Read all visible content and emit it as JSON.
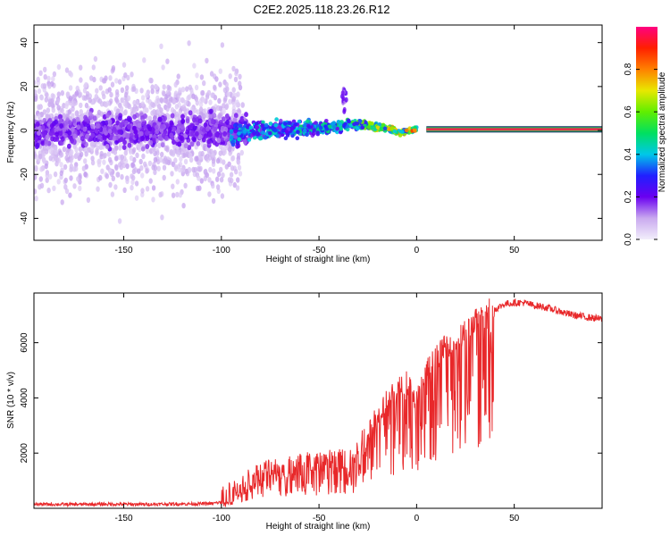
{
  "title": "C2E2.2025.118.23.26.R12",
  "colors": {
    "snr_line": "#e8282a",
    "flat_band": "#e0304a",
    "axis": "#000000"
  },
  "chart_data": [
    {
      "type": "heatmap",
      "xlabel": "Height of straight line (km)",
      "ylabel": "Frequency (Hz)",
      "xlim": [
        -196,
        95
      ],
      "ylim": [
        -50,
        48
      ],
      "xticks": [
        -150,
        -100,
        -50,
        0,
        50
      ],
      "yticks": [
        -40,
        -20,
        0,
        20,
        40
      ],
      "colorbar": {
        "label": "Normalized spectral amplitude",
        "range": [
          0.0,
          1.0
        ],
        "ticks": [
          0.0,
          0.2,
          0.4,
          0.6,
          0.8
        ],
        "tick_labels": [
          "0.0",
          "0.2",
          "0.4",
          "0.6",
          "0.8"
        ],
        "colormap": [
          "#f2eefb",
          "#c9a9ef",
          "#6a00f0",
          "#2020ff",
          "#00c8e8",
          "#00e060",
          "#60ee00",
          "#e8e800",
          "#ff8000",
          "#ff2000",
          "#ff0080"
        ]
      },
      "description_points": {
        "flat_band": {
          "x_from": 5,
          "x_to": 95,
          "frequency": 0.5,
          "amplitude": 0.97
        },
        "transition_band": [
          {
            "x": -95,
            "frequency": -2,
            "amplitude": 0.45
          },
          {
            "x": -80,
            "frequency": 0,
            "amplitude": 0.45
          },
          {
            "x": -60,
            "frequency": 1,
            "amplitude": 0.5
          },
          {
            "x": -45,
            "frequency": 1,
            "amplitude": 0.5
          },
          {
            "x": -35,
            "frequency": 3,
            "amplitude": 0.6
          },
          {
            "x": -25,
            "frequency": 2,
            "amplitude": 0.7
          },
          {
            "x": -15,
            "frequency": 1,
            "amplitude": 0.85
          },
          {
            "x": -8,
            "frequency": -1,
            "amplitude": 0.8
          },
          {
            "x": 0,
            "frequency": 0.5,
            "amplitude": 0.95
          }
        ],
        "noise_region": {
          "x_from": -196,
          "x_to": -95,
          "frequency_spread": 45
        }
      }
    },
    {
      "type": "line",
      "xlabel": "Height of straight line (km)",
      "ylabel": "SNR (10 * v/v)",
      "xlim": [
        -196,
        95
      ],
      "ylim": [
        0,
        7800
      ],
      "xticks": [
        -150,
        -100,
        -50,
        0,
        50
      ],
      "yticks": [
        2000,
        4000,
        6000
      ],
      "series": [
        {
          "x": [
            -196,
            -180,
            -160,
            -140,
            -120,
            -105,
            -100,
            -95,
            -90,
            -85,
            -80,
            -75,
            -70,
            -65,
            -60,
            -55,
            -50,
            -45,
            -40,
            -35,
            -30,
            -25,
            -20,
            -15,
            -10,
            -5,
            0,
            5,
            10,
            15,
            20,
            25,
            30,
            35,
            40,
            45,
            50,
            55,
            60,
            65,
            70,
            75,
            80,
            85,
            90,
            95
          ],
          "y": [
            150,
            140,
            150,
            145,
            160,
            170,
            220,
            350,
            600,
            900,
            1100,
            1250,
            1300,
            1350,
            1400,
            1500,
            1500,
            1600,
            1650,
            1700,
            1900,
            2600,
            3300,
            3700,
            4100,
            4400,
            3700,
            4800,
            5300,
            5700,
            5900,
            6200,
            6600,
            6900,
            7200,
            7400,
            7450,
            7450,
            7350,
            7300,
            7200,
            7100,
            7000,
            6950,
            6900,
            6850
          ]
        }
      ]
    }
  ]
}
